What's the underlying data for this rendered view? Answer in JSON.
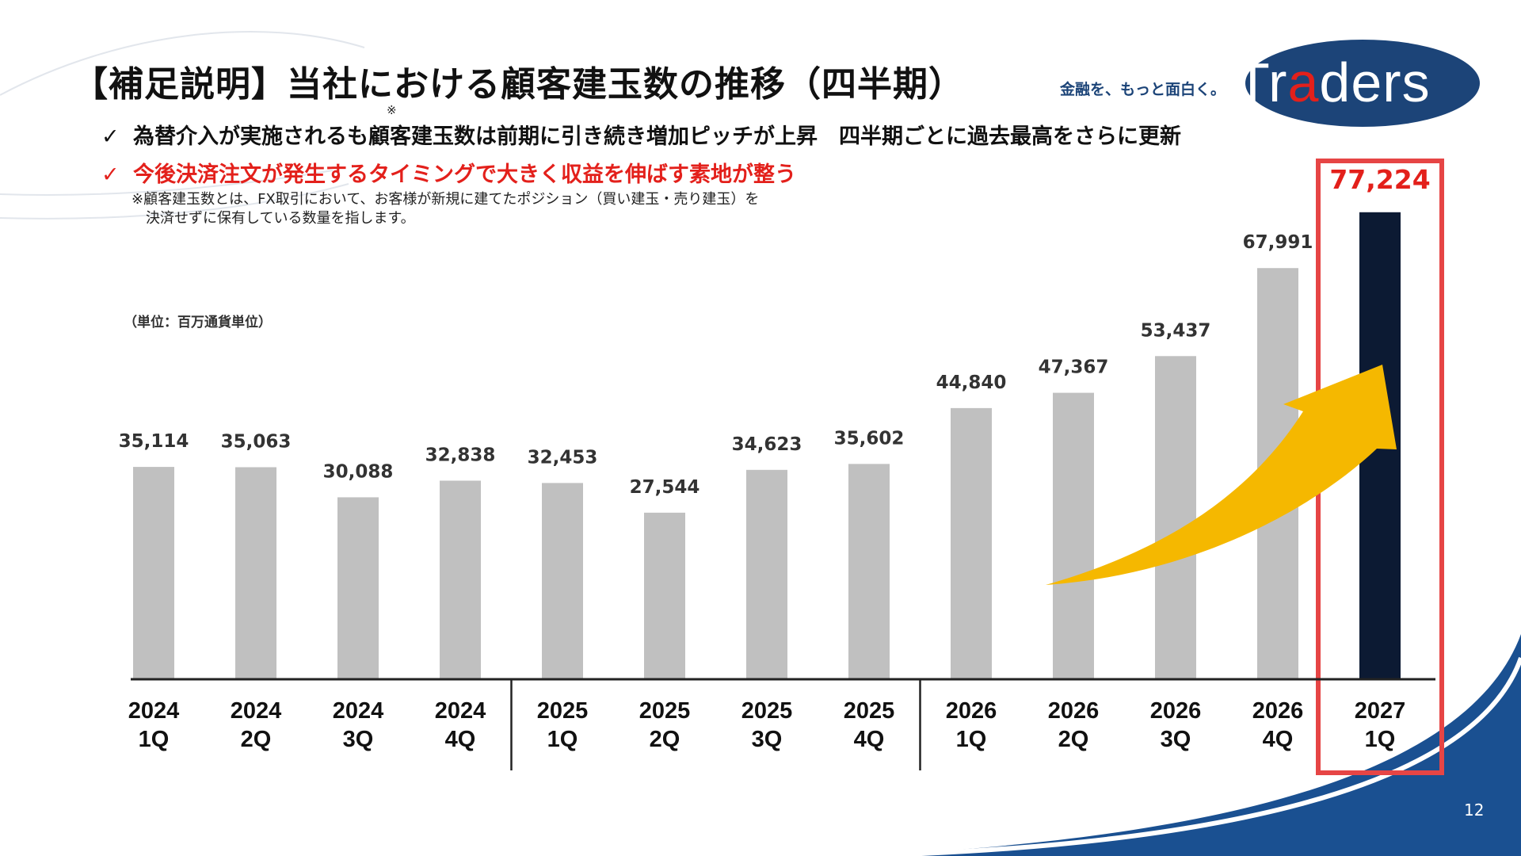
{
  "header": {
    "title": "【補足説明】当社における顧客建玉数の推移（四半期）",
    "note_mark": "※",
    "bullets": [
      {
        "check": "✓",
        "text": "為替介入が実施されるも顧客建玉数は前期に引き続き増加ピッチが上昇　四半期ごとに過去最高をさらに更新"
      },
      {
        "check": "✓",
        "text": "今後決済注文が発生するタイミングで大きく収益を伸ばす素地が整う"
      }
    ],
    "footnote_line1": "※顧客建玉数とは、FX取引において、お客様が新規に建てたポジション（買い建玉・売り建玉）を",
    "footnote_line2": "決済せずに保有している数量を指します。"
  },
  "brand": {
    "tagline": "金融を、もっと面白く。",
    "logo_part1": "Tr",
    "logo_part2": "a",
    "logo_part3": "ders"
  },
  "colors": {
    "bar_default": "#c0c0c0",
    "bar_highlight": "#0c1a33",
    "highlight_frame": "#e64545",
    "arrow": "#f5b800",
    "brand_navy": "#1c4478",
    "accent_red": "#e3201b"
  },
  "chart_data": {
    "type": "bar",
    "unit_label": "（単位：百万通貨単位）",
    "categories": [
      [
        "2024",
        "1Q"
      ],
      [
        "2024",
        "2Q"
      ],
      [
        "2024",
        "3Q"
      ],
      [
        "2024",
        "4Q"
      ],
      [
        "2025",
        "1Q"
      ],
      [
        "2025",
        "2Q"
      ],
      [
        "2025",
        "3Q"
      ],
      [
        "2025",
        "4Q"
      ],
      [
        "2026",
        "1Q"
      ],
      [
        "2026",
        "2Q"
      ],
      [
        "2026",
        "3Q"
      ],
      [
        "2026",
        "4Q"
      ],
      [
        "2027",
        "1Q"
      ]
    ],
    "values": [
      35114,
      35063,
      30088,
      32838,
      32453,
      27544,
      34623,
      35602,
      44840,
      47367,
      53437,
      67991,
      77224
    ],
    "value_labels": [
      "35,114",
      "35,063",
      "30,088",
      "32,838",
      "32,453",
      "27,544",
      "34,623",
      "35,602",
      "44,840",
      "47,367",
      "53,437",
      "67,991",
      "77,224"
    ],
    "highlight_index": 12,
    "year_separators_after": [
      3,
      7
    ],
    "grid": false,
    "legend": "none"
  },
  "page_number": "12"
}
